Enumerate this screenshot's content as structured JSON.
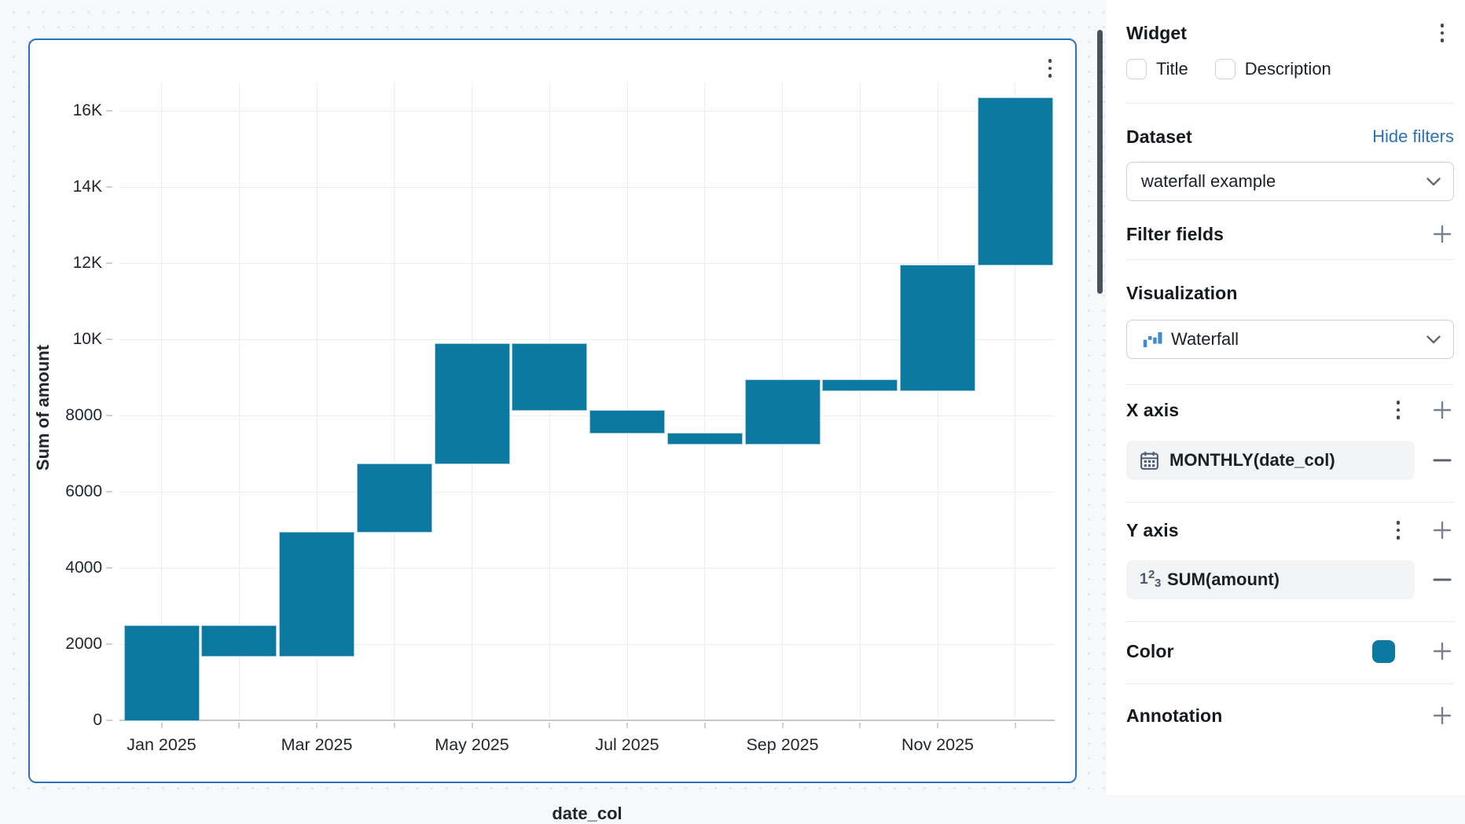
{
  "panel": {
    "title": "Widget",
    "checkboxes": [
      {
        "label": "Title",
        "checked": false
      },
      {
        "label": "Description",
        "checked": false
      }
    ],
    "dataset": {
      "heading": "Dataset",
      "link": "Hide filters",
      "selected": "waterfall example"
    },
    "filter_fields": {
      "heading": "Filter fields"
    },
    "visualization": {
      "heading": "Visualization",
      "selected": "Waterfall"
    },
    "x_axis": {
      "heading": "X axis",
      "field": "MONTHLY(date_col)",
      "field_type": "date"
    },
    "y_axis": {
      "heading": "Y axis",
      "field": "SUM(amount)",
      "field_type": "number"
    },
    "color": {
      "heading": "Color",
      "swatch": "#0b79a0"
    },
    "annotation": {
      "heading": "Annotation"
    }
  },
  "chart_data": {
    "type": "waterfall",
    "xlabel": "date_col",
    "ylabel": "Sum of amount",
    "grid": true,
    "ylim": [
      0,
      16800
    ],
    "bar_color": "#0b79a0",
    "y_ticks": [
      {
        "value": 0,
        "label": "0"
      },
      {
        "value": 2000,
        "label": "2000"
      },
      {
        "value": 4000,
        "label": "4000"
      },
      {
        "value": 6000,
        "label": "6000"
      },
      {
        "value": 8000,
        "label": "8000"
      },
      {
        "value": 10000,
        "label": "10K"
      },
      {
        "value": 12000,
        "label": "12K"
      },
      {
        "value": 14000,
        "label": "14K"
      },
      {
        "value": 16000,
        "label": "16K"
      }
    ],
    "x_tick_labels": [
      "Jan 2025",
      "Mar 2025",
      "May 2025",
      "Jul 2025",
      "Sep 2025",
      "Nov 2025"
    ],
    "bars": [
      {
        "month": "Jan 2025",
        "start": 0,
        "end": 2500
      },
      {
        "month": "Feb 2025",
        "start": 2500,
        "end": 1700
      },
      {
        "month": "Mar 2025",
        "start": 1700,
        "end": 4950
      },
      {
        "month": "Apr 2025",
        "start": 4950,
        "end": 6750
      },
      {
        "month": "May 2025",
        "start": 6750,
        "end": 9900
      },
      {
        "month": "Jun 2025",
        "start": 9900,
        "end": 8150
      },
      {
        "month": "Jul 2025",
        "start": 8150,
        "end": 7550
      },
      {
        "month": "Aug 2025",
        "start": 7550,
        "end": 7250
      },
      {
        "month": "Sep 2025",
        "start": 7250,
        "end": 8950
      },
      {
        "month": "Oct 2025",
        "start": 8950,
        "end": 8650
      },
      {
        "month": "Nov 2025",
        "start": 8650,
        "end": 11950
      },
      {
        "month": "Dec 2025",
        "start": 11950,
        "end": 16350
      }
    ]
  }
}
